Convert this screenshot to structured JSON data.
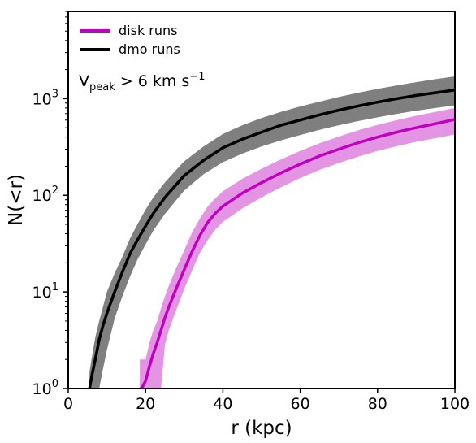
{
  "chart_data": {
    "type": "line",
    "title": "",
    "xlabel": "r (kpc)",
    "ylabel": "N(<r)",
    "xlim": [
      0,
      100
    ],
    "ylim": [
      1,
      8000
    ],
    "yscale": "log",
    "x_ticks": [
      0,
      20,
      40,
      60,
      80,
      100
    ],
    "y_ticks": [
      {
        "value": 1,
        "base": "10",
        "exp": "0"
      },
      {
        "value": 10,
        "base": "10",
        "exp": "1"
      },
      {
        "value": 100,
        "base": "10",
        "exp": "2"
      },
      {
        "value": 1000,
        "base": "10",
        "exp": "3"
      }
    ],
    "annotation": {
      "v": "V",
      "sub": "peak",
      "text": " > 6 km s",
      "sup": "−1"
    },
    "legend": {
      "placement": "top-left",
      "entries": [
        {
          "label": "disk runs",
          "color": "#c000c0"
        },
        {
          "label": "dmo runs",
          "color": "#000000"
        }
      ]
    },
    "grid": false,
    "series": [
      {
        "name": "dmo runs",
        "color": "#000000",
        "band_color": "#7f7f7f",
        "x": [
          5.5,
          6,
          7,
          8,
          9,
          10,
          12,
          14,
          16,
          18,
          20,
          22,
          25,
          28,
          30,
          35,
          40,
          45,
          50,
          55,
          60,
          65,
          70,
          75,
          80,
          85,
          90,
          95,
          100
        ],
        "median": [
          1.0,
          1.3,
          2.0,
          3.2,
          4.5,
          6.0,
          10,
          16,
          25,
          35,
          48,
          65,
          95,
          130,
          160,
          230,
          310,
          380,
          450,
          530,
          600,
          680,
          760,
          840,
          920,
          1000,
          1080,
          1150,
          1230
        ],
        "low": [
          1.0,
          1.0,
          1.0,
          1.0,
          1.6,
          2.5,
          5.3,
          9,
          14.5,
          22,
          31,
          43,
          64,
          90,
          112,
          165,
          220,
          270,
          320,
          370,
          420,
          475,
          530,
          585,
          640,
          695,
          750,
          800,
          850
        ],
        "high": [
          1.5,
          2.0,
          3.4,
          5.0,
          7.0,
          10,
          15.6,
          23,
          36,
          51,
          71,
          95,
          136,
          185,
          225,
          320,
          430,
          530,
          630,
          730,
          830,
          930,
          1040,
          1150,
          1260,
          1370,
          1480,
          1590,
          1700
        ]
      },
      {
        "name": "disk runs",
        "color": "#c000c0",
        "band_color": "#e395e3",
        "x": [
          18.5,
          19,
          20,
          21,
          22,
          23,
          24,
          25,
          26,
          28,
          30,
          32,
          34,
          36,
          38,
          40,
          45,
          50,
          55,
          60,
          65,
          70,
          75,
          80,
          85,
          90,
          95,
          100
        ],
        "median": [
          1.0,
          1.0,
          1.2,
          1.7,
          2.3,
          3.0,
          4.0,
          5.4,
          7.0,
          11,
          17,
          26,
          38,
          52,
          65,
          77,
          105,
          135,
          170,
          210,
          255,
          300,
          350,
          400,
          450,
          500,
          550,
          610
        ],
        "low": [
          1.0,
          1.0,
          1.0,
          1.0,
          1.0,
          1.0,
          1.0,
          2.8,
          4.0,
          6.6,
          10.7,
          16.5,
          25,
          34,
          44,
          53,
          73,
          95,
          121,
          151,
          183,
          216,
          251,
          287,
          322,
          357,
          390,
          425
        ],
        "high": [
          2.0,
          2.0,
          2.0,
          3.0,
          4.0,
          5.0,
          6.8,
          9.0,
          11.6,
          18,
          27,
          41,
          57,
          76,
          93,
          110,
          148,
          188,
          235,
          288,
          345,
          405,
          470,
          535,
          600,
          665,
          730,
          800
        ]
      }
    ]
  }
}
